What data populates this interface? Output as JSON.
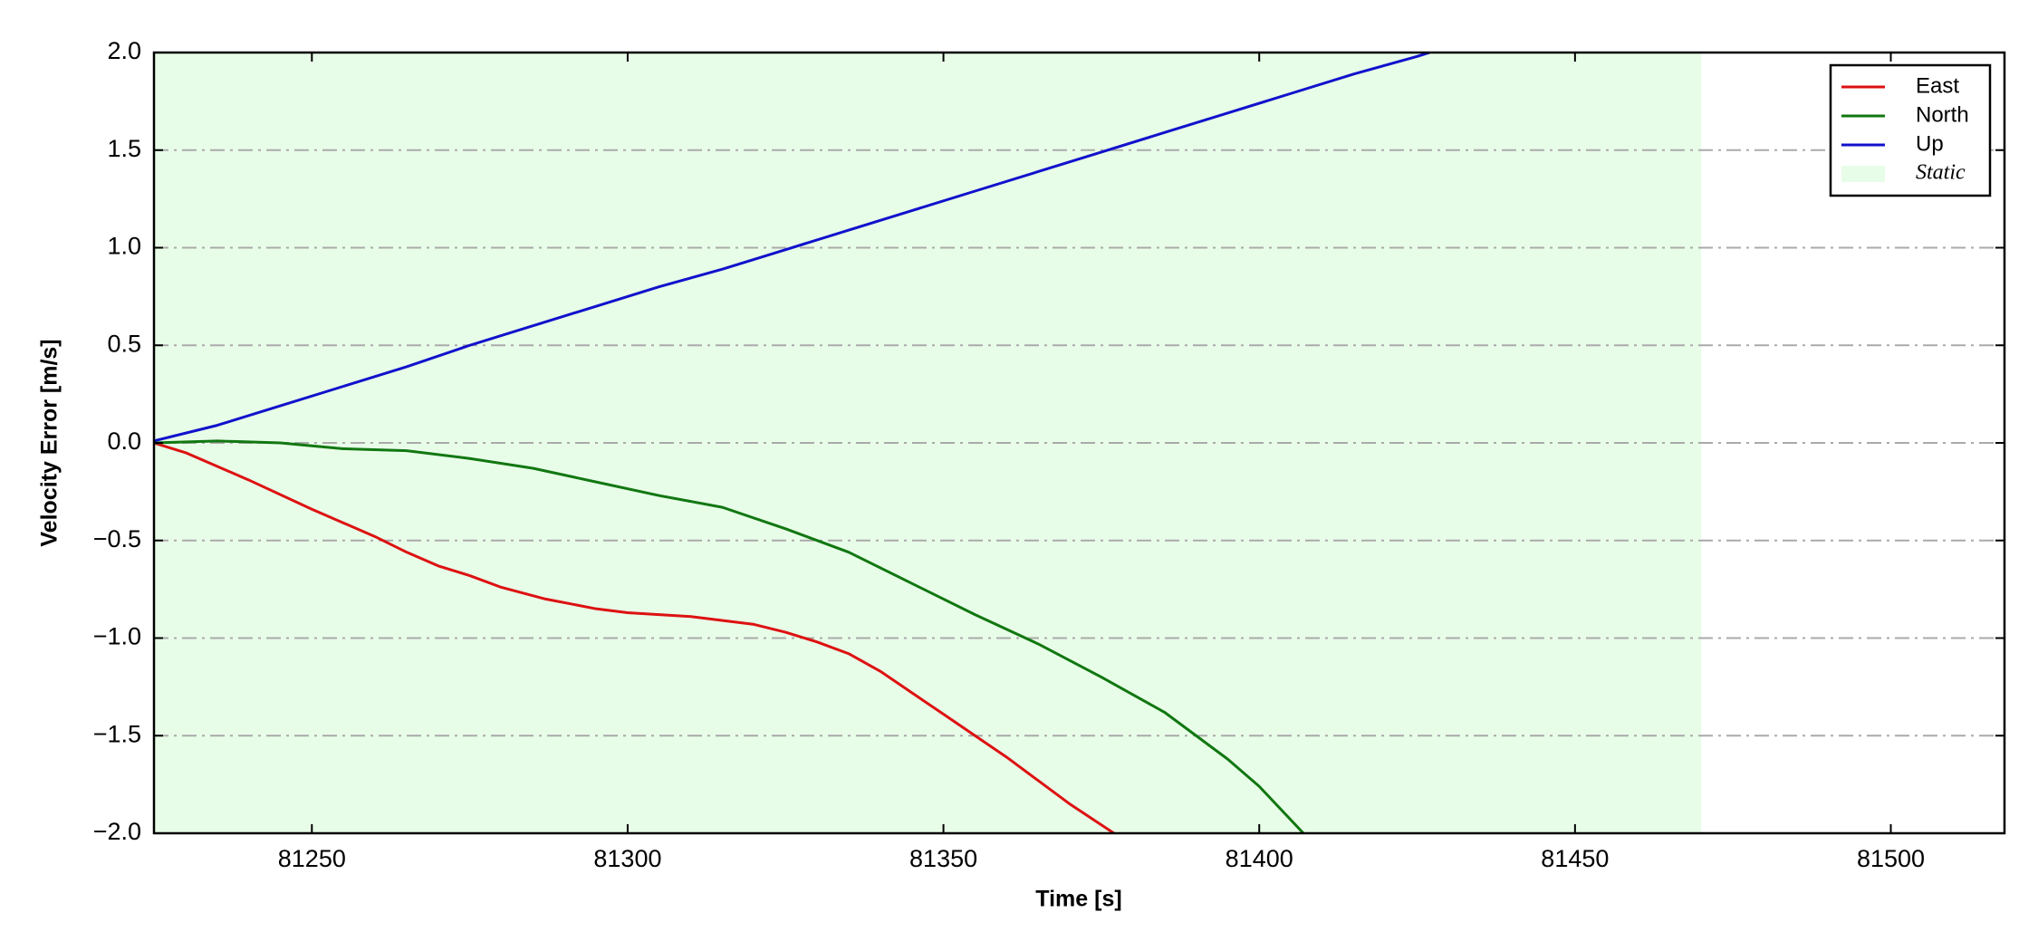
{
  "chart_data": {
    "type": "line",
    "xlabel": "Time [s]",
    "ylabel": "Velocity Error [m/s]",
    "xlim": [
      81225,
      81518
    ],
    "ylim": [
      -2,
      2
    ],
    "xticks": [
      81250,
      81300,
      81350,
      81400,
      81450,
      81500
    ],
    "yticks": [
      {
        "value": -2,
        "label": "−2.0"
      },
      {
        "value": -1.5,
        "label": "−1.5"
      },
      {
        "value": -1,
        "label": "−1.0"
      },
      {
        "value": -0.5,
        "label": "−0.5"
      },
      {
        "value": 0,
        "label": "0.0"
      },
      {
        "value": 0.5,
        "label": "0.5"
      },
      {
        "value": 1,
        "label": "1.0"
      },
      {
        "value": 1.5,
        "label": "1.5"
      },
      {
        "value": 2,
        "label": "2.0"
      }
    ],
    "grid": true,
    "legend": "upper right",
    "region": {
      "name": "Static",
      "xlim": [
        81225,
        81470
      ],
      "color": "#e8fde8"
    },
    "series": [
      {
        "name": "East",
        "color": "#dd1111",
        "x": [
          81225,
          81230,
          81240,
          81250,
          81260,
          81265,
          81270,
          81275,
          81280,
          81287,
          81295,
          81300,
          81310,
          81320,
          81325,
          81330,
          81335,
          81340,
          81345,
          81350,
          81355,
          81360,
          81365,
          81370,
          81377
        ],
        "values": [
          0,
          -0.05,
          -0.19,
          -0.34,
          -0.48,
          -0.56,
          -0.63,
          -0.68,
          -0.74,
          -0.8,
          -0.85,
          -0.87,
          -0.89,
          -0.93,
          -0.97,
          -1.02,
          -1.08,
          -1.17,
          -1.28,
          -1.39,
          -1.5,
          -1.61,
          -1.73,
          -1.85,
          -2.0
        ]
      },
      {
        "name": "North",
        "color": "#117711",
        "x": [
          81225,
          81235,
          81245,
          81255,
          81265,
          81275,
          81285,
          81295,
          81305,
          81315,
          81325,
          81335,
          81345,
          81355,
          81365,
          81375,
          81385,
          81395,
          81400,
          81407
        ],
        "values": [
          0,
          0.01,
          0,
          -0.03,
          -0.04,
          -0.08,
          -0.13,
          -0.2,
          -0.27,
          -0.33,
          -0.44,
          -0.56,
          -0.72,
          -0.88,
          -1.03,
          -1.2,
          -1.38,
          -1.62,
          -1.76,
          -2.0
        ]
      },
      {
        "name": "Up",
        "color": "#1111cc",
        "x": [
          81225,
          81235,
          81245,
          81255,
          81265,
          81275,
          81285,
          81295,
          81305,
          81315,
          81325,
          81335,
          81345,
          81355,
          81365,
          81375,
          81385,
          81395,
          81405,
          81415,
          81425,
          81427
        ],
        "values": [
          0.01,
          0.09,
          0.19,
          0.29,
          0.39,
          0.5,
          0.6,
          0.7,
          0.8,
          0.89,
          0.99,
          1.09,
          1.19,
          1.29,
          1.39,
          1.49,
          1.59,
          1.69,
          1.79,
          1.89,
          1.98,
          2.0
        ]
      }
    ]
  }
}
